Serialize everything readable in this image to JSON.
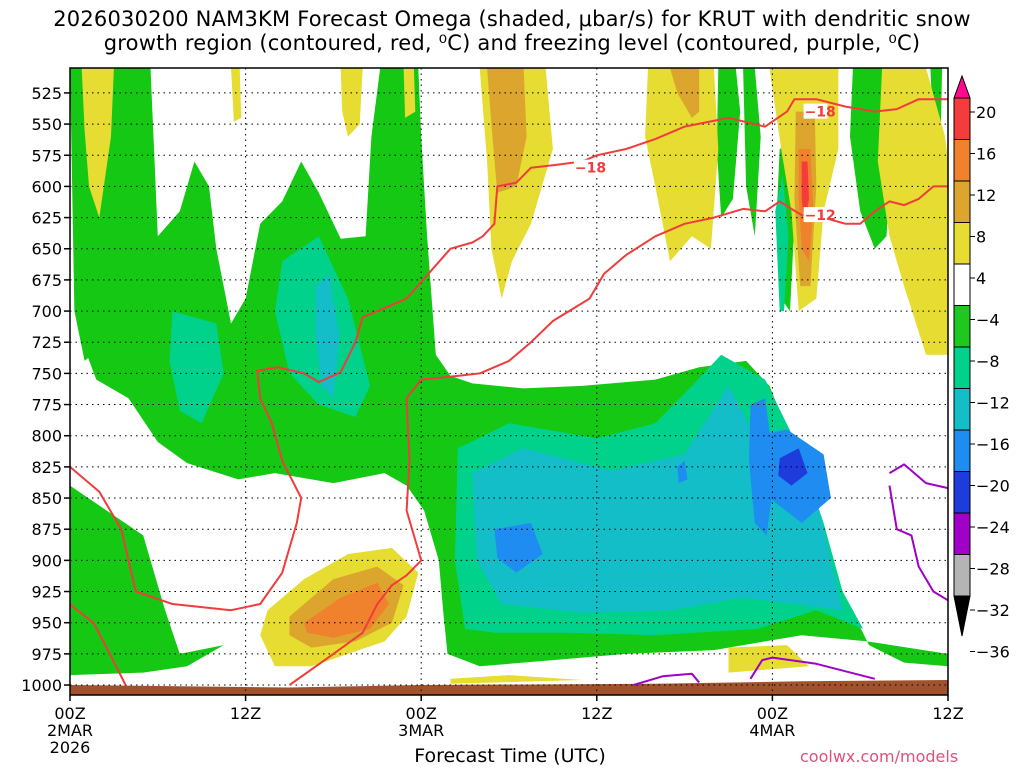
{
  "title": {
    "line1": "2026030200 NAM3KM Forecast Omega (shaded, μbar/s) for KRUT with dendritic snow",
    "line2": "growth region (contoured, red, ⁰C) and freezing level (contoured, purple, ⁰C)"
  },
  "chart_data": {
    "type": "heatmap",
    "xlabel": "Forecast Time (UTC)",
    "x_ticks": [
      {
        "label": "00Z",
        "sub1": "2MAR",
        "sub2": "2026",
        "hours": 0
      },
      {
        "label": "12Z",
        "sub1": "",
        "sub2": "",
        "hours": 12
      },
      {
        "label": "00Z",
        "sub1": "3MAR",
        "sub2": "",
        "hours": 24
      },
      {
        "label": "12Z",
        "sub1": "",
        "sub2": "",
        "hours": 36
      },
      {
        "label": "00Z",
        "sub1": "4MAR",
        "sub2": "",
        "hours": 48
      },
      {
        "label": "12Z",
        "sub1": "",
        "sub2": "",
        "hours": 60
      }
    ],
    "xlim_hours": [
      0,
      60
    ],
    "y_ticks": [
      525,
      550,
      575,
      600,
      625,
      650,
      675,
      700,
      725,
      750,
      775,
      800,
      825,
      850,
      875,
      900,
      925,
      950,
      975,
      1000
    ],
    "ylim_hpa": [
      505,
      1008
    ],
    "grid": true,
    "colorbar": {
      "labels": [
        "20",
        "16",
        "12",
        "8",
        "4",
        "−4",
        "−8",
        "−12",
        "−16",
        "−20",
        "−24",
        "−28",
        "−32",
        "−36"
      ],
      "colors": [
        "#ff0a8c",
        "#f53c3c",
        "#f0822d",
        "#dca52d",
        "#e6dc32",
        "#ffffff",
        "#1ec81e",
        "#00d28c",
        "#14bec8",
        "#1e8cf0",
        "#1e3cdc",
        "#a000c8",
        "#b4b4b4",
        "#000000"
      ]
    },
    "colors": {
      "green": "#14c814",
      "teal": "#00d28c",
      "cyan": "#14bec8",
      "blue": "#1e8cf0",
      "darkblue": "#1e3cdc",
      "yellow": "#e6dc32",
      "gold": "#dca52d",
      "orange": "#f0822d",
      "red": "#f53c3c",
      "dgz": "#f03c3c",
      "freezing": "#a000c8",
      "ground": "#a0522d"
    },
    "contour_labels": [
      {
        "text": "−18",
        "hours": 34.5,
        "hpa": 585
      },
      {
        "text": "−18",
        "hours": 50.2,
        "hpa": 540
      },
      {
        "text": "−12",
        "hours": 50.2,
        "hpa": 623
      }
    ]
  },
  "credit": "coolwx.com/models"
}
